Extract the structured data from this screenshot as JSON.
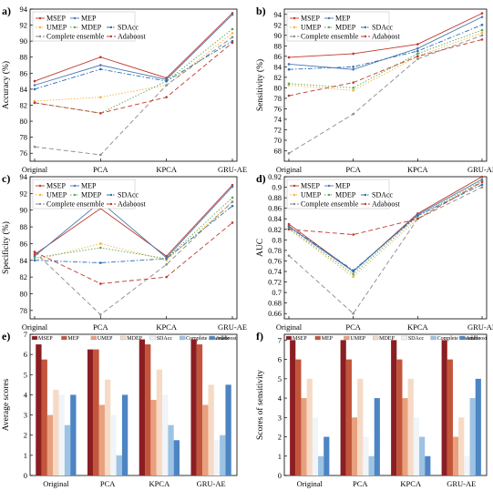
{
  "chart_data": [
    {
      "id": "a",
      "panel_label": "a)",
      "type": "line",
      "categories": [
        "Original",
        "PCA",
        "KPCA",
        "GRU-AE"
      ],
      "ylabel": "Accuracy (%)",
      "ylim": [
        75,
        94
      ],
      "yticks": [
        76,
        78,
        80,
        82,
        84,
        86,
        88,
        90,
        92,
        94
      ],
      "legend_position": "top-left",
      "series": [
        {
          "name": "MSEP",
          "values": [
            85.0,
            88.0,
            85.4,
            93.5
          ],
          "color": "#c0392b",
          "dash": "solid",
          "marker": "o"
        },
        {
          "name": "MEP",
          "values": [
            84.5,
            87.0,
            85.2,
            93.3
          ],
          "color": "#4a78b0",
          "dash": "solid",
          "marker": "o"
        },
        {
          "name": "UMEP",
          "values": [
            82.5,
            83.0,
            84.5,
            91.0
          ],
          "color": "#f4b43a",
          "dash": "dotted",
          "marker": "o"
        },
        {
          "name": "MDEP",
          "values": [
            82.3,
            81.0,
            85.0,
            91.5
          ],
          "color": "#5aa85a",
          "dash": "dotted",
          "marker": "o"
        },
        {
          "name": "SDAcc",
          "values": [
            84.0,
            86.5,
            85.0,
            90.0
          ],
          "color": "#2e6fb0",
          "dash": "dashdot",
          "marker": "o"
        },
        {
          "name": "Complete ensemble",
          "values": [
            76.8,
            75.8,
            84.5,
            90.5
          ],
          "color": "#8a8a8a",
          "dash": "dashed",
          "marker": "o"
        },
        {
          "name": "Adaboost",
          "values": [
            82.3,
            81.0,
            83.0,
            89.8
          ],
          "color": "#c0392b",
          "dash": "dashed",
          "marker": "o"
        }
      ]
    },
    {
      "id": "b",
      "panel_label": "b)",
      "type": "line",
      "categories": [
        "Original",
        "PCA",
        "KPCA",
        "GRU-AE"
      ],
      "ylabel": "Sensitivity (%)",
      "ylim": [
        66,
        95
      ],
      "yticks": [
        68,
        70,
        72,
        74,
        76,
        78,
        80,
        82,
        84,
        86,
        88,
        90,
        92,
        94
      ],
      "legend_position": "top-left",
      "series": [
        {
          "name": "MSEP",
          "values": [
            85.8,
            86.5,
            88.3,
            94.2
          ],
          "color": "#c0392b",
          "dash": "solid",
          "marker": "o"
        },
        {
          "name": "MEP",
          "values": [
            84.5,
            83.5,
            87.5,
            93.5
          ],
          "color": "#4a78b0",
          "dash": "solid",
          "marker": "o"
        },
        {
          "name": "UMEP",
          "values": [
            80.5,
            79.5,
            86.0,
            90.5
          ],
          "color": "#f4b43a",
          "dash": "dotted",
          "marker": "o"
        },
        {
          "name": "MDEP",
          "values": [
            80.8,
            80.0,
            86.5,
            91.0
          ],
          "color": "#5aa85a",
          "dash": "dotted",
          "marker": "o"
        },
        {
          "name": "SDAcc",
          "values": [
            83.5,
            84.0,
            87.0,
            92.0
          ],
          "color": "#2e6fb0",
          "dash": "dashdot",
          "marker": "o"
        },
        {
          "name": "Complete ensemble",
          "values": [
            67.5,
            75.0,
            85.5,
            90.0
          ],
          "color": "#8a8a8a",
          "dash": "dashed",
          "marker": "o"
        },
        {
          "name": "Adaboost",
          "values": [
            78.5,
            81.0,
            86.0,
            89.2
          ],
          "color": "#c0392b",
          "dash": "dashed",
          "marker": "o"
        }
      ]
    },
    {
      "id": "c",
      "panel_label": "c)",
      "type": "line",
      "categories": [
        "Original",
        "PCA",
        "KPCA",
        "GRU-AE"
      ],
      "ylabel": "Specificity (%)",
      "ylim": [
        77,
        94
      ],
      "yticks": [
        78,
        80,
        82,
        84,
        86,
        88,
        90,
        92,
        94
      ],
      "legend_position": "top-left",
      "series": [
        {
          "name": "MSEP",
          "values": [
            84.7,
            90.2,
            84.5,
            93.0
          ],
          "color": "#c0392b",
          "dash": "solid",
          "marker": "o"
        },
        {
          "name": "MEP",
          "values": [
            84.5,
            91.0,
            84.3,
            92.8
          ],
          "color": "#4a78b0",
          "dash": "solid",
          "marker": "o"
        },
        {
          "name": "UMEP",
          "values": [
            84.0,
            86.0,
            84.0,
            91.0
          ],
          "color": "#f4b43a",
          "dash": "dotted",
          "marker": "o"
        },
        {
          "name": "MDEP",
          "values": [
            84.3,
            85.5,
            84.2,
            91.5
          ],
          "color": "#5aa85a",
          "dash": "dotted",
          "marker": "o"
        },
        {
          "name": "SDAcc",
          "values": [
            84.0,
            83.7,
            84.2,
            90.5
          ],
          "color": "#2e6fb0",
          "dash": "dashdot",
          "marker": "o"
        },
        {
          "name": "Complete ensemble",
          "values": [
            85.0,
            77.5,
            83.5,
            91.0
          ],
          "color": "#8a8a8a",
          "dash": "dashed",
          "marker": "o"
        },
        {
          "name": "Adaboost",
          "values": [
            85.0,
            81.2,
            82.0,
            88.5
          ],
          "color": "#c0392b",
          "dash": "dashed",
          "marker": "o"
        }
      ]
    },
    {
      "id": "d",
      "panel_label": "d)",
      "type": "line",
      "categories": [
        "Original",
        "PCA",
        "KPCA",
        "GRU-AE"
      ],
      "ylabel": "AUC",
      "ylim": [
        0.65,
        0.92
      ],
      "yticks": [
        0.66,
        0.68,
        0.7,
        0.72,
        0.74,
        0.76,
        0.78,
        0.8,
        0.82,
        0.84,
        0.86,
        0.88,
        0.9,
        0.92
      ],
      "legend_position": "top-left",
      "series": [
        {
          "name": "MSEP",
          "values": [
            0.83,
            0.74,
            0.85,
            0.92
          ],
          "color": "#c0392b",
          "dash": "solid",
          "marker": "o"
        },
        {
          "name": "MEP",
          "values": [
            0.825,
            0.74,
            0.848,
            0.915
          ],
          "color": "#4a78b0",
          "dash": "solid",
          "marker": "o"
        },
        {
          "name": "UMEP",
          "values": [
            0.82,
            0.73,
            0.84,
            0.91
          ],
          "color": "#f4b43a",
          "dash": "dotted",
          "marker": "o"
        },
        {
          "name": "MDEP",
          "values": [
            0.822,
            0.735,
            0.845,
            0.912
          ],
          "color": "#5aa85a",
          "dash": "dotted",
          "marker": "o"
        },
        {
          "name": "SDAcc",
          "values": [
            0.826,
            0.742,
            0.846,
            0.905
          ],
          "color": "#2e6fb0",
          "dash": "dashdot",
          "marker": "o"
        },
        {
          "name": "Complete ensemble",
          "values": [
            0.77,
            0.66,
            0.84,
            0.9
          ],
          "color": "#8a8a8a",
          "dash": "dashed",
          "marker": "o"
        },
        {
          "name": "Adaboost",
          "values": [
            0.82,
            0.81,
            0.84,
            0.91
          ],
          "color": "#c0392b",
          "dash": "dashed",
          "marker": "o"
        }
      ]
    },
    {
      "id": "e",
      "panel_label": "e)",
      "type": "bar",
      "categories": [
        "Original",
        "PCA",
        "KPCA",
        "GRU-AE"
      ],
      "ylabel": "Average scores",
      "ylim": [
        0,
        7
      ],
      "yticks": [
        0,
        1,
        2,
        3,
        4,
        5,
        6,
        7
      ],
      "legend_position": "top",
      "series": [
        {
          "name": "MSEP",
          "values": [
            6.5,
            6.25,
            6.75,
            6.75
          ],
          "color": "#8b1e22"
        },
        {
          "name": "MEP",
          "values": [
            5.75,
            6.25,
            6.5,
            6.5
          ],
          "color": "#c2553a"
        },
        {
          "name": "UMEP",
          "values": [
            3.0,
            3.5,
            3.75,
            3.5
          ],
          "color": "#e8a07e"
        },
        {
          "name": "MDEP",
          "values": [
            4.25,
            4.75,
            5.25,
            4.5
          ],
          "color": "#f6dac6"
        },
        {
          "name": "SDAcc",
          "values": [
            4.0,
            3.0,
            4.0,
            1.75
          ],
          "color": "#f1f4f8"
        },
        {
          "name": "Complete ensemble",
          "values": [
            2.5,
            1.0,
            2.5,
            2.0
          ],
          "color": "#9dc3e4"
        },
        {
          "name": "Adaboost",
          "values": [
            4.0,
            4.0,
            1.75,
            4.5
          ],
          "color": "#4d85c3"
        }
      ]
    },
    {
      "id": "f",
      "panel_label": "f)",
      "type": "bar",
      "categories": [
        "Original",
        "PCA",
        "KPCA",
        "GRU-AE"
      ],
      "ylabel": "Scores of sensitivity",
      "ylim": [
        0,
        7.3
      ],
      "yticks": [
        0,
        1,
        2,
        3,
        4,
        5,
        6,
        7
      ],
      "legend_position": "top",
      "series": [
        {
          "name": "MSEP",
          "values": [
            7,
            7,
            7,
            7
          ],
          "color": "#8b1e22"
        },
        {
          "name": "MEP",
          "values": [
            6,
            6,
            6,
            6
          ],
          "color": "#c2553a"
        },
        {
          "name": "UMEP",
          "values": [
            4,
            3,
            4,
            2
          ],
          "color": "#e8a07e"
        },
        {
          "name": "MDEP",
          "values": [
            5,
            5,
            5,
            3
          ],
          "color": "#f6dac6"
        },
        {
          "name": "SDAcc",
          "values": [
            3,
            2,
            3,
            1
          ],
          "color": "#f1f4f8"
        },
        {
          "name": "Complete ensemble",
          "values": [
            1,
            1,
            2,
            4
          ],
          "color": "#9dc3e4"
        },
        {
          "name": "Adaboost",
          "values": [
            2,
            4,
            1,
            5
          ],
          "color": "#4d85c3"
        }
      ]
    }
  ]
}
